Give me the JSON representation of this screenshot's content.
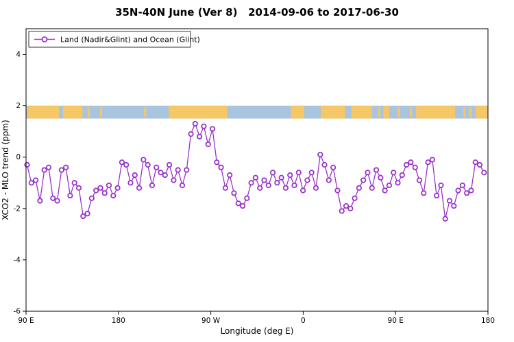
{
  "title": "35N-40N June (Ver 8)   2014-09-06 to 2017-06-30",
  "chart_data": {
    "type": "line",
    "title": "35N-40N June (Ver 8)   2014-09-06 to 2017-06-30",
    "xlabel": "Longitude (deg E)",
    "ylabel": "XCO2 - MLO trend (ppm)",
    "xlim": [
      90,
      540
    ],
    "ylim": [
      -6,
      5
    ],
    "grid": false,
    "legend_position": "top-left",
    "legend": {
      "label": "Land (Nadir&Glint) and Ocean (Glint)"
    },
    "series_color": "#9932cc",
    "marker": "open-circle",
    "x_ticks": [
      {
        "value": 90,
        "label": "90 E"
      },
      {
        "value": 180,
        "label": "180"
      },
      {
        "value": 270,
        "label": "90 W"
      },
      {
        "value": 360,
        "label": "0"
      },
      {
        "value": 450,
        "label": "90 E"
      },
      {
        "value": 540,
        "label": "180"
      }
    ],
    "y_ticks": [
      4,
      2,
      0,
      -2,
      -4,
      -6
    ],
    "x_start": 91,
    "x_step": 4.2,
    "values": [
      -0.3,
      -1.0,
      -0.9,
      -1.7,
      -0.5,
      -0.4,
      -1.6,
      -1.7,
      -0.5,
      -0.4,
      -1.5,
      -1.0,
      -1.2,
      -2.3,
      -2.2,
      -1.6,
      -1.3,
      -1.2,
      -1.4,
      -1.1,
      -1.5,
      -1.2,
      -0.2,
      -0.3,
      -1.0,
      -0.7,
      -1.2,
      -0.1,
      -0.3,
      -1.1,
      -0.4,
      -0.6,
      -0.7,
      -0.3,
      -0.9,
      -0.5,
      -1.1,
      -0.5,
      0.9,
      1.3,
      0.8,
      1.2,
      0.5,
      1.1,
      -0.2,
      -0.4,
      -1.2,
      -0.7,
      -1.4,
      -1.8,
      -1.9,
      -1.6,
      -1.0,
      -0.8,
      -1.2,
      -0.9,
      -1.1,
      -0.6,
      -1.0,
      -0.8,
      -1.2,
      -0.7,
      -1.1,
      -0.6,
      -1.3,
      -0.9,
      -0.6,
      -1.2,
      0.1,
      -0.3,
      -0.9,
      -0.4,
      -1.3,
      -2.1,
      -1.9,
      -2.0,
      -1.6,
      -1.2,
      -0.9,
      -0.6,
      -1.2,
      -0.5,
      -0.8,
      -1.3,
      -1.1,
      -0.6,
      -1.0,
      -0.7,
      -0.3,
      -0.2,
      -0.4,
      -0.9,
      -1.4,
      -0.2,
      -0.1,
      -1.5,
      -1.1,
      -2.4,
      -1.7,
      -1.9,
      -1.3,
      -1.1,
      -1.4,
      -1.3,
      -0.2,
      -0.3,
      -0.6
    ],
    "land_ocean_band": {
      "description": "map strip of land (orange) vs ocean (blue) along 35N-40N",
      "y_range": [
        1.5,
        2.0
      ],
      "ocean_color": "#a9c4de",
      "land_color": "#f5c767",
      "land_segments": [
        [
          91,
          122
        ],
        [
          126,
          145
        ],
        [
          229,
          286
        ],
        [
          348,
          361
        ],
        [
          377,
          401
        ],
        [
          407,
          427
        ],
        [
          438,
          444
        ],
        [
          470,
          508
        ],
        [
          528,
          540
        ]
      ],
      "land_specks": [
        150,
        162,
        205,
        433,
        452,
        464,
        516,
        522
      ]
    }
  }
}
